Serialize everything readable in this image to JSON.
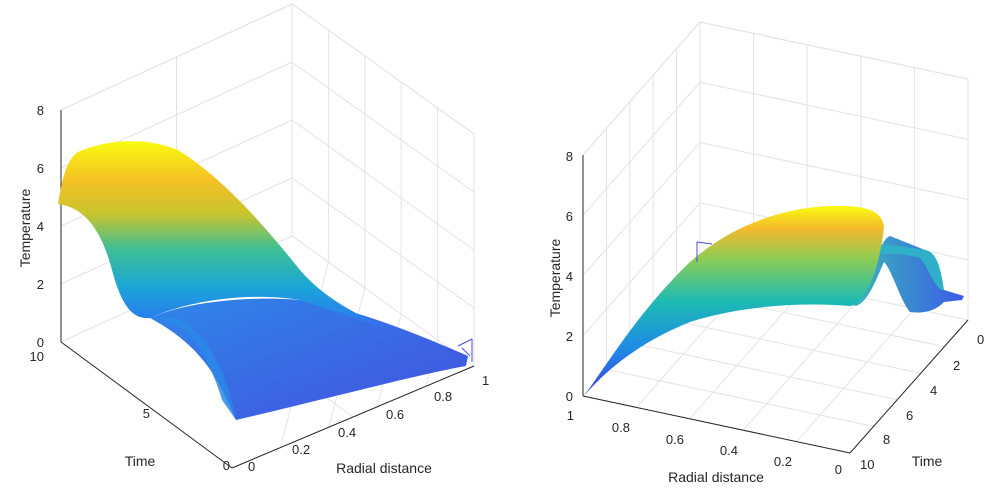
{
  "chart_data": [
    {
      "type": "surface",
      "title": "",
      "xlabel": "Radial distance",
      "ylabel": "Time",
      "zlabel": "Temperature",
      "x_ticks": [
        "0",
        "0.2",
        "0.4",
        "0.6",
        "0.8",
        "1"
      ],
      "y_ticks": [
        "0",
        "5",
        "10"
      ],
      "z_ticks": [
        "0",
        "2",
        "4",
        "6",
        "8"
      ],
      "xlim": [
        0,
        1
      ],
      "ylim": [
        0,
        10
      ],
      "zlim": [
        0,
        8
      ],
      "grid": true,
      "colormap": "parula",
      "surface_profile": {
        "radial": [
          0,
          0.1,
          0.2,
          0.3,
          0.4,
          0.5,
          0.6,
          0.7,
          0.8,
          0.9,
          1
        ],
        "peak_temperature_by_time": {
          "t": [
            0,
            2.5,
            5,
            6.5,
            8,
            10
          ],
          "T": [
            0.6,
            2.4,
            4.8,
            6.3,
            6.7,
            6.6
          ]
        }
      }
    },
    {
      "type": "surface",
      "title": "",
      "xlabel": "Radial distance",
      "ylabel": "Time",
      "zlabel": "Temperature",
      "x_ticks": [
        "1",
        "0.8",
        "0.6",
        "0.4",
        "0.2",
        "0"
      ],
      "y_ticks": [
        "0",
        "2",
        "4",
        "6",
        "8",
        "10"
      ],
      "z_ticks": [
        "0",
        "2",
        "4",
        "6",
        "8"
      ],
      "xlim": [
        0,
        1
      ],
      "ylim": [
        0,
        10
      ],
      "zlim": [
        0,
        8
      ],
      "grid": true,
      "colormap": "parula"
    }
  ]
}
